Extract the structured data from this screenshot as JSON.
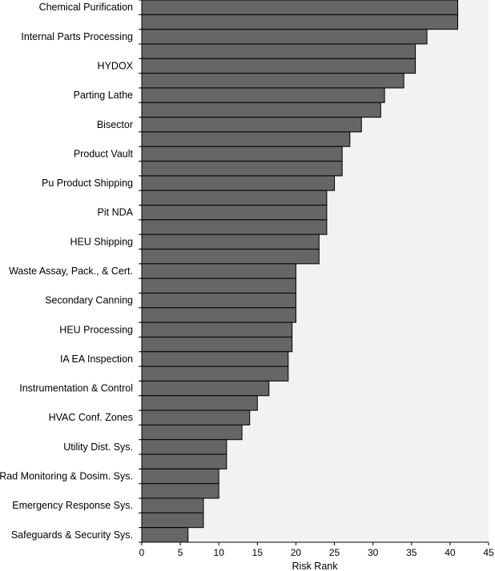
{
  "chart_data": {
    "type": "bar",
    "orientation": "horizontal",
    "categories": [
      "Chemical Purification",
      "",
      "Internal Parts Processing",
      "",
      "HYDOX",
      "",
      "Parting Lathe",
      "",
      "Bisector",
      "",
      "Product Vault",
      "",
      "Pu Product Shipping",
      "",
      "Pit NDA",
      "",
      "HEU Shipping",
      "",
      "Waste Assay, Pack., & Cert.",
      "",
      "Secondary Canning",
      "",
      "HEU Processing",
      "",
      "IA EA Inspection",
      "",
      "Instrumentation & Control",
      "",
      "HVAC Conf. Zones",
      "",
      "Utility Dist. Sys.",
      "",
      "Rad Monitoring & Dosim. Sys.",
      "",
      "Emergency Response Sys.",
      "",
      "Safeguards & Security Sys."
    ],
    "values": [
      41,
      41,
      37,
      35.5,
      35.5,
      34,
      31.5,
      31,
      28.5,
      27,
      26,
      26,
      25,
      24,
      24,
      24,
      23,
      23,
      20,
      20,
      20,
      20,
      19.5,
      19.5,
      19,
      19,
      16.5,
      15,
      14,
      13,
      11,
      11,
      10,
      10,
      8,
      8,
      6
    ],
    "xlabel": "Risk Rank",
    "ylabel": "",
    "xlim": [
      0,
      45
    ],
    "xticks": [
      0,
      5,
      10,
      15,
      20,
      25,
      30,
      35,
      40,
      45
    ],
    "grid": false,
    "bar_color": "#666666",
    "bar_stroke": "#000000",
    "plot_background": "#f2f2f2"
  }
}
